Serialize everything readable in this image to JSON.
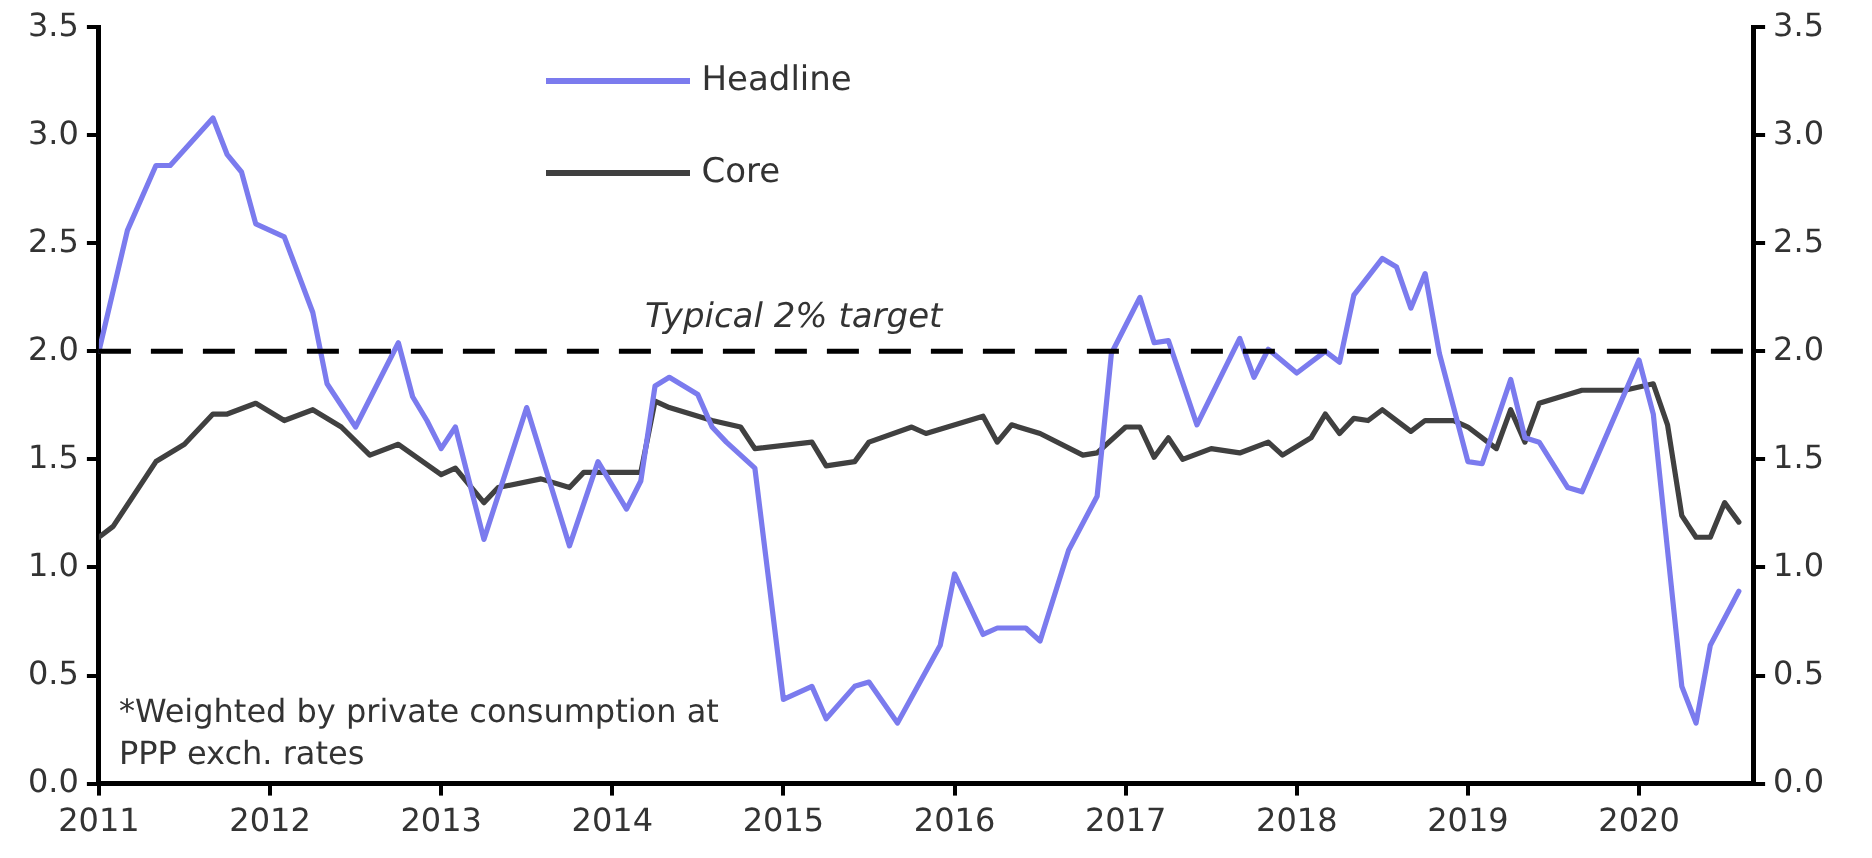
{
  "chart_data": {
    "type": "line",
    "xlim": [
      "2011-01",
      "2020-09"
    ],
    "xticks": [
      "2011",
      "2012",
      "2013",
      "2014",
      "2015",
      "2016",
      "2017",
      "2018",
      "2019",
      "2020"
    ],
    "ylim": [
      0,
      3.5
    ],
    "yticks": [
      {
        "value": 0,
        "label": "0.0"
      },
      {
        "value": 0.5,
        "label": "0.5"
      },
      {
        "value": 1,
        "label": "1.0"
      },
      {
        "value": 1.5,
        "label": "1.5"
      },
      {
        "value": 2,
        "label": "2.0"
      },
      {
        "value": 2.5,
        "label": "2.5"
      },
      {
        "value": 3,
        "label": "3.0"
      },
      {
        "value": 3.5,
        "label": "3.5"
      }
    ],
    "y2lim": [
      0,
      3.5
    ],
    "y2ticks": [
      {
        "value": 0,
        "label": "0.0"
      },
      {
        "value": 0.5,
        "label": "0.5"
      },
      {
        "value": 1,
        "label": "1.0"
      },
      {
        "value": 1.5,
        "label": "1.5"
      },
      {
        "value": 2,
        "label": "2.0"
      },
      {
        "value": 2.5,
        "label": "2.5"
      },
      {
        "value": 3,
        "label": "3.0"
      },
      {
        "value": 3.5,
        "label": "3.5"
      }
    ],
    "grid": false,
    "legend": "top",
    "marker": "none",
    "line_style": "solid",
    "series": [
      {
        "name": "Headline",
        "color": "#7b7bee",
        "x": [
          "2011-01",
          "2011-03",
          "2011-05",
          "2011-06",
          "2011-09",
          "2011-10",
          "2011-11",
          "2011-12",
          "2012-02",
          "2012-04",
          "2012-05",
          "2012-07",
          "2012-10",
          "2012-11",
          "2012-12",
          "2013-01",
          "2013-02",
          "2013-04",
          "2013-07",
          "2013-10",
          "2013-12",
          "2014-02",
          "2014-03",
          "2014-04",
          "2014-05",
          "2014-07",
          "2014-08",
          "2014-09",
          "2014-11",
          "2015-01",
          "2015-03",
          "2015-04",
          "2015-06",
          "2015-07",
          "2015-09",
          "2015-12",
          "2016-01",
          "2016-03",
          "2016-04",
          "2016-06",
          "2016-07",
          "2016-09",
          "2016-11",
          "2016-12",
          "2017-02",
          "2017-03",
          "2017-04",
          "2017-06",
          "2017-09",
          "2017-10",
          "2017-11",
          "2018-01",
          "2018-03",
          "2018-04",
          "2018-05",
          "2018-07",
          "2018-08",
          "2018-09",
          "2018-10",
          "2018-11",
          "2019-01",
          "2019-02",
          "2019-04",
          "2019-05",
          "2019-06",
          "2019-08",
          "2019-09",
          "2020-01",
          "2020-02",
          "2020-04",
          "2020-05",
          "2020-06",
          "2020-08"
        ],
        "values": [
          2.0,
          2.56,
          2.86,
          2.86,
          3.08,
          2.91,
          2.83,
          2.59,
          2.53,
          2.18,
          1.85,
          1.65,
          2.04,
          1.79,
          1.68,
          1.55,
          1.65,
          1.13,
          1.74,
          1.1,
          1.49,
          1.27,
          1.4,
          1.84,
          1.88,
          1.8,
          1.65,
          1.58,
          1.46,
          0.39,
          0.45,
          0.3,
          0.45,
          0.47,
          0.28,
          0.64,
          0.97,
          0.69,
          0.72,
          0.72,
          0.66,
          1.08,
          1.33,
          1.99,
          2.25,
          2.04,
          2.05,
          1.66,
          2.06,
          1.88,
          2.01,
          1.9,
          2.0,
          1.95,
          2.26,
          2.43,
          2.39,
          2.2,
          2.36,
          1.99,
          1.49,
          1.48,
          1.87,
          1.6,
          1.58,
          1.37,
          1.35,
          1.96,
          1.71,
          0.45,
          0.28,
          0.64,
          0.89
        ]
      },
      {
        "name": "Core",
        "color": "#404040",
        "x": [
          "2011-01",
          "2011-02",
          "2011-05",
          "2011-07",
          "2011-09",
          "2011-10",
          "2011-12",
          "2012-02",
          "2012-04",
          "2012-06",
          "2012-08",
          "2012-10",
          "2013-01",
          "2013-02",
          "2013-04",
          "2013-05",
          "2013-08",
          "2013-10",
          "2013-11",
          "2014-03",
          "2014-04",
          "2014-05",
          "2014-08",
          "2014-10",
          "2014-11",
          "2015-03",
          "2015-04",
          "2015-06",
          "2015-07",
          "2015-10",
          "2015-11",
          "2016-03",
          "2016-04",
          "2016-05",
          "2016-07",
          "2016-10",
          "2016-11",
          "2017-01",
          "2017-02",
          "2017-03",
          "2017-04",
          "2017-05",
          "2017-07",
          "2017-09",
          "2017-11",
          "2017-12",
          "2018-02",
          "2018-03",
          "2018-04",
          "2018-05",
          "2018-06",
          "2018-07",
          "2018-09",
          "2018-10",
          "2018-12",
          "2019-01",
          "2019-03",
          "2019-04",
          "2019-05",
          "2019-06",
          "2019-09",
          "2019-12",
          "2020-02",
          "2020-03",
          "2020-04",
          "2020-05",
          "2020-06",
          "2020-07",
          "2020-08"
        ],
        "values": [
          1.14,
          1.19,
          1.49,
          1.57,
          1.71,
          1.71,
          1.76,
          1.68,
          1.73,
          1.65,
          1.52,
          1.57,
          1.43,
          1.46,
          1.3,
          1.37,
          1.41,
          1.37,
          1.44,
          1.44,
          1.77,
          1.74,
          1.68,
          1.65,
          1.55,
          1.58,
          1.47,
          1.49,
          1.58,
          1.65,
          1.62,
          1.7,
          1.58,
          1.66,
          1.62,
          1.52,
          1.53,
          1.65,
          1.65,
          1.51,
          1.6,
          1.5,
          1.55,
          1.53,
          1.58,
          1.52,
          1.6,
          1.71,
          1.62,
          1.69,
          1.68,
          1.73,
          1.63,
          1.68,
          1.68,
          1.65,
          1.55,
          1.73,
          1.58,
          1.76,
          1.82,
          1.82,
          1.85,
          1.66,
          1.24,
          1.14,
          1.14,
          1.3,
          1.21
        ]
      }
    ],
    "ref_lines": [
      {
        "axis": "y",
        "value": 2,
        "label": "Typical 2% target",
        "color": "#000000",
        "line_style": "dashed"
      }
    ],
    "annotations": [
      "*Weighted by private consumption at PPP exch. rates"
    ]
  }
}
